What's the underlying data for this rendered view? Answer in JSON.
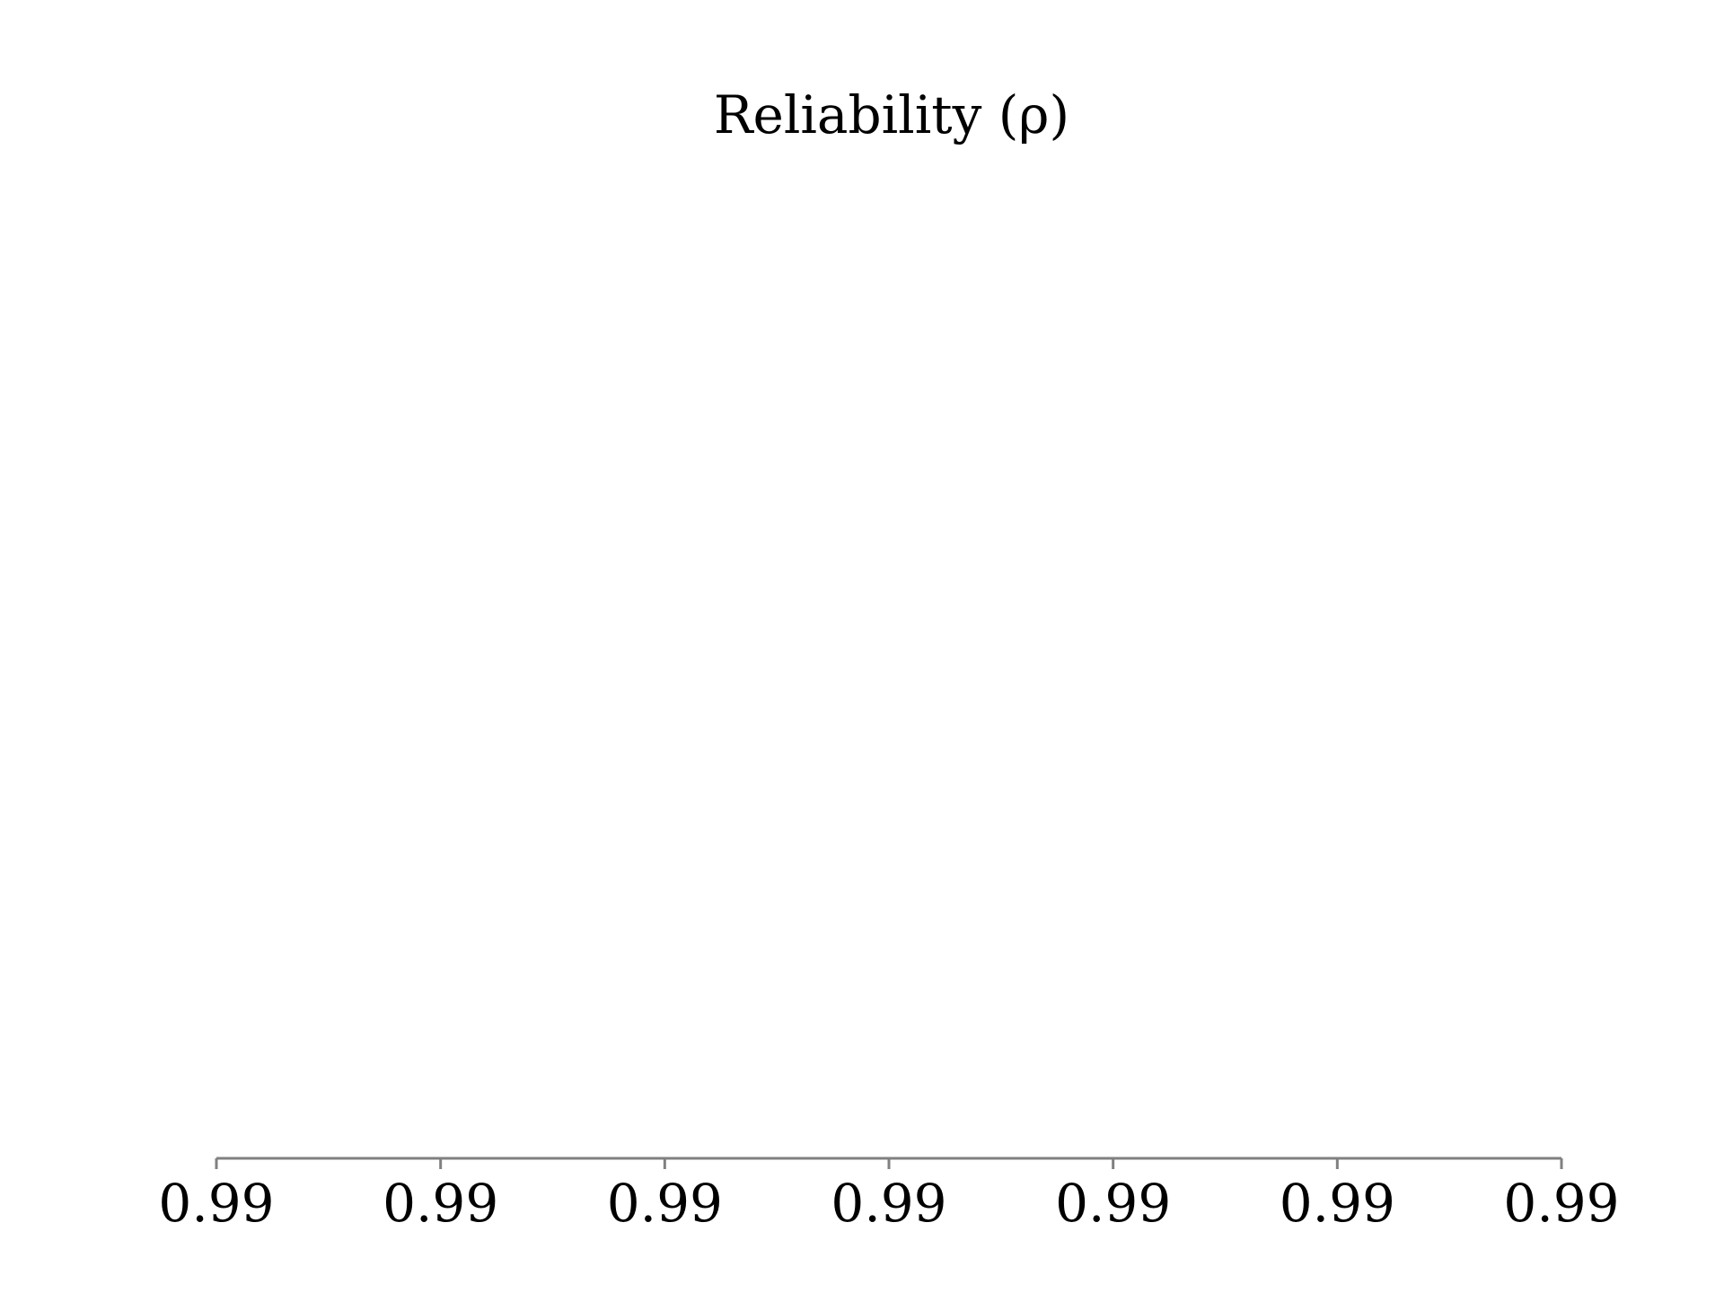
{
  "chart_data": {
    "type": "line",
    "title": "Reliability (ρ)",
    "xlabel": "",
    "ylabel": "",
    "x_tick_labels": [
      "0.99",
      "0.99",
      "0.99",
      "0.99",
      "0.99",
      "0.99",
      "0.99"
    ],
    "series": [],
    "grid": false,
    "y_axis_visible": false,
    "legend": "none",
    "axis_color": "#808080",
    "text_color": "#000000"
  }
}
